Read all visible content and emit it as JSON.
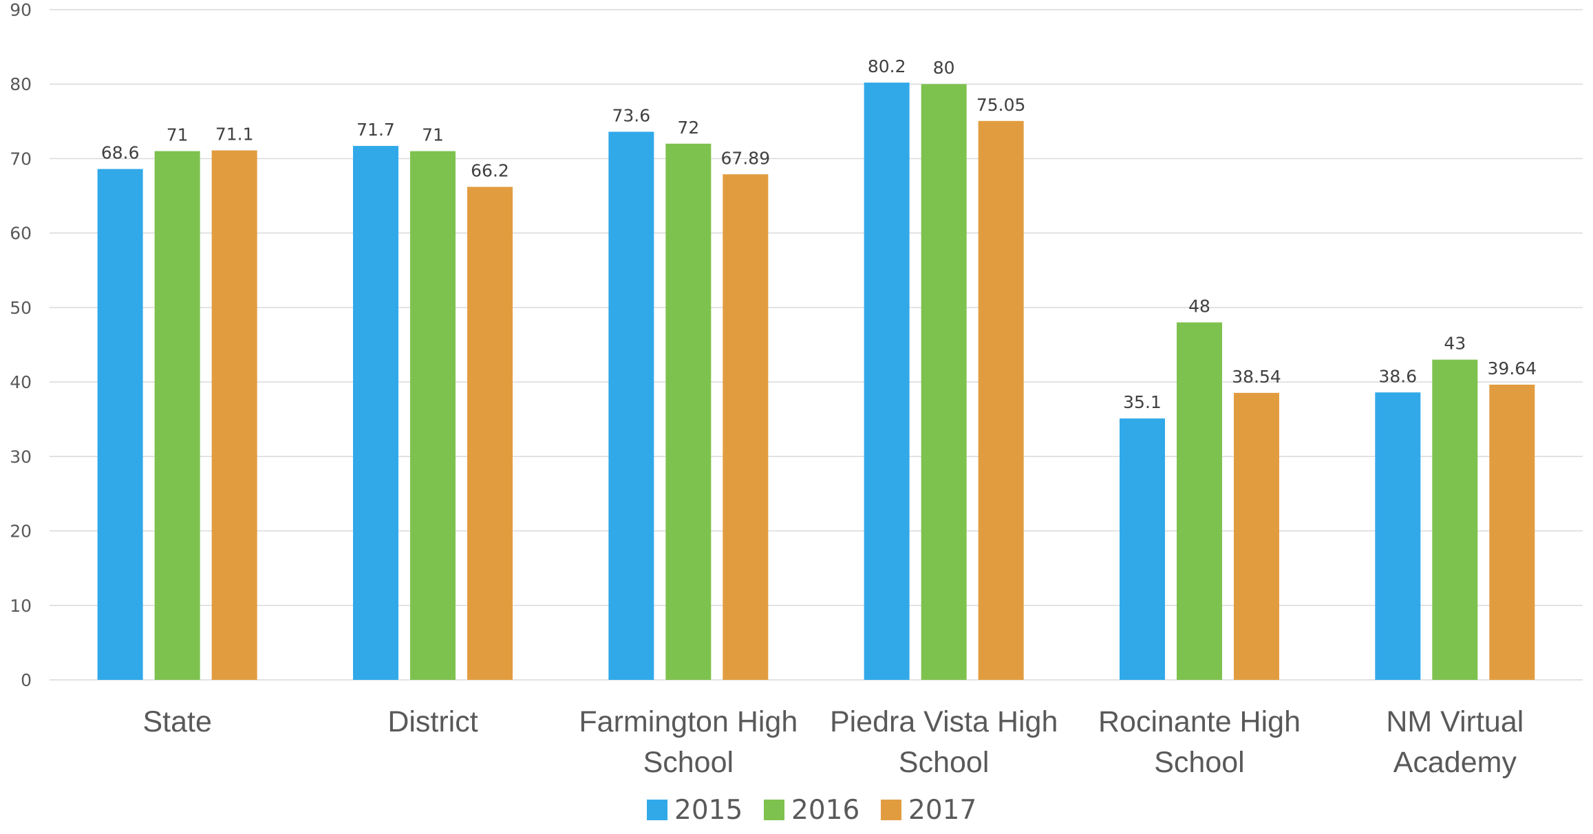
{
  "chart_data": {
    "type": "bar",
    "title": "",
    "xlabel": "",
    "ylabel": "",
    "ylim": [
      0,
      90
    ],
    "yticks": [
      0,
      10,
      20,
      30,
      40,
      50,
      60,
      70,
      80,
      90
    ],
    "grid": true,
    "legend_position": "bottom",
    "categories": [
      [
        "State"
      ],
      [
        "District"
      ],
      [
        "Farmington High",
        "School"
      ],
      [
        "Piedra Vista High",
        "School"
      ],
      [
        "Rocinante High",
        "School"
      ],
      [
        "NM Virtual",
        "Academy"
      ]
    ],
    "series": [
      {
        "name": "2015",
        "color": "#31a9e9",
        "values": [
          68.6,
          71.7,
          73.6,
          80.2,
          35.1,
          38.6
        ],
        "labels": [
          "68.6",
          "71.7",
          "73.6",
          "80.2",
          "35.1",
          "38.6"
        ]
      },
      {
        "name": "2016",
        "color": "#7dc24e",
        "values": [
          71,
          71,
          72,
          80,
          48,
          43
        ],
        "labels": [
          "71",
          "71",
          "72",
          "80",
          "48",
          "43"
        ]
      },
      {
        "name": "2017",
        "color": "#e29c40",
        "values": [
          71.1,
          66.2,
          67.89,
          75.05,
          38.54,
          39.64
        ],
        "labels": [
          "71.1",
          "66.2",
          "67.89",
          "75.05",
          "38.54",
          "39.64"
        ]
      }
    ]
  }
}
